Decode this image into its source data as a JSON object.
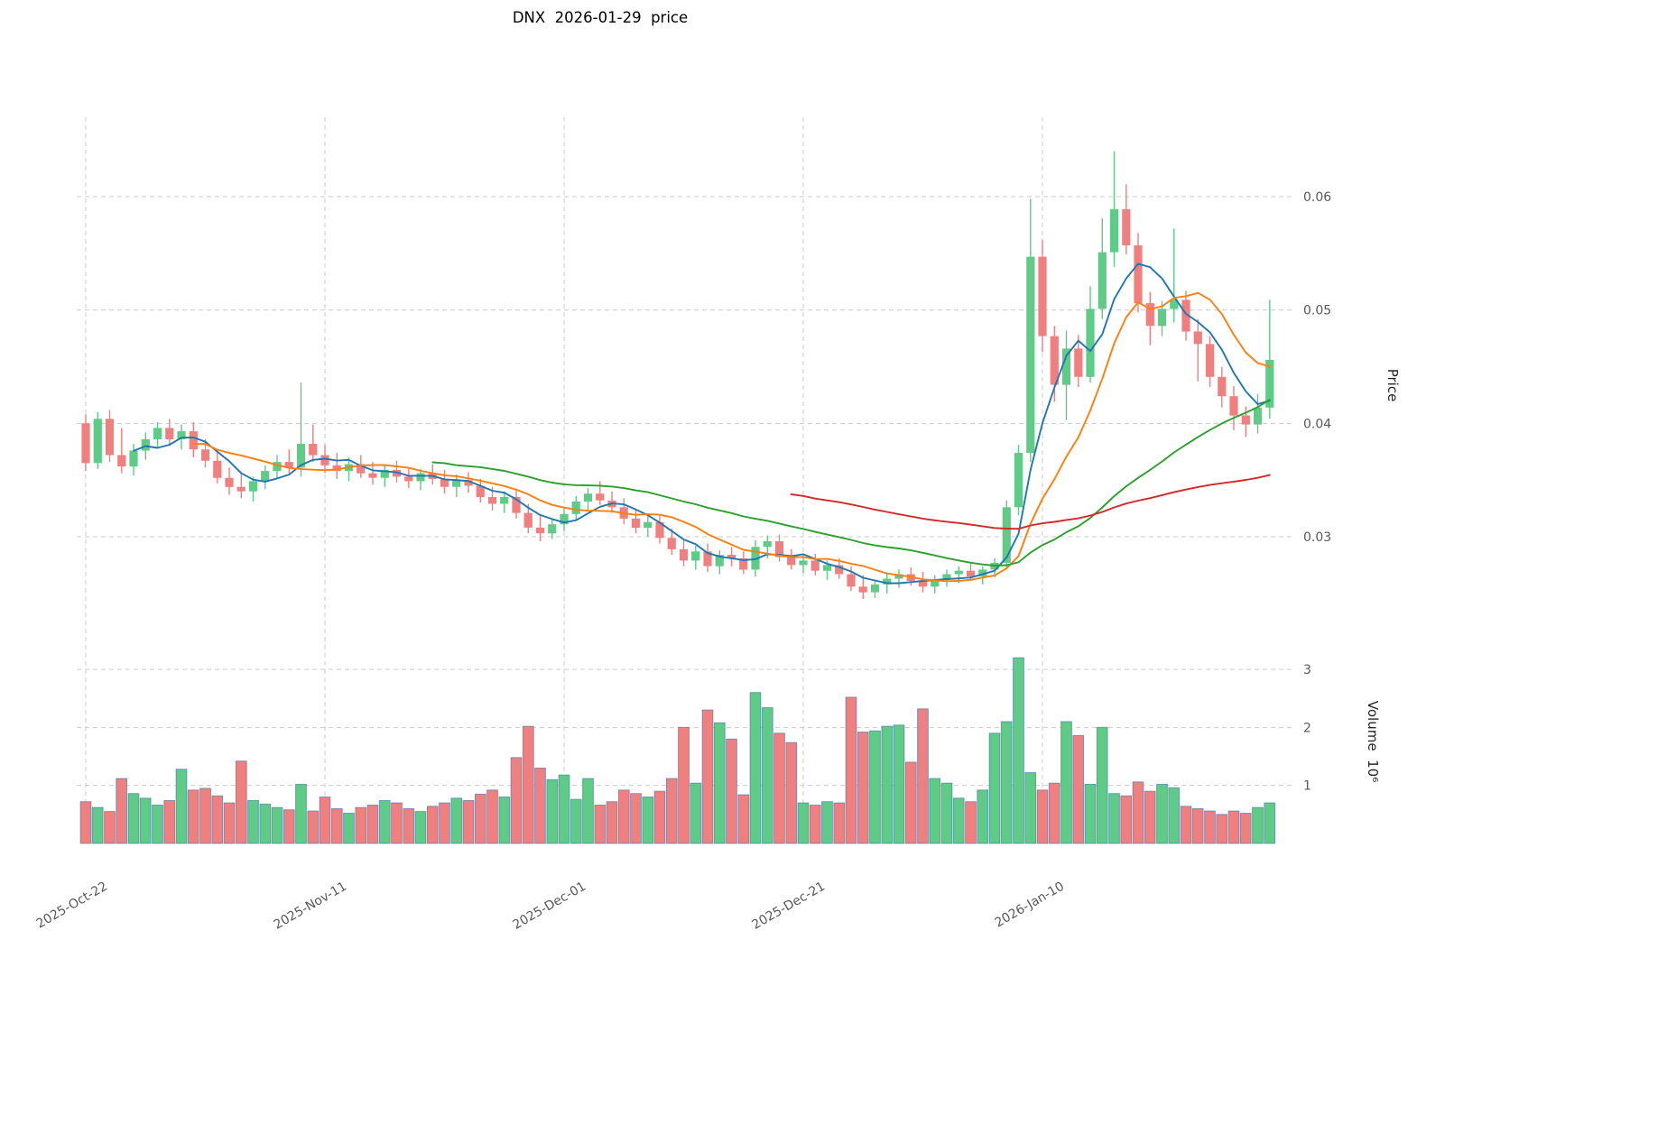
{
  "title": "DNX  2026-01-29  price",
  "axes": {
    "price_label": "Price",
    "volume_label": "Volume  10⁶",
    "price_ticks": [
      0.03,
      0.04,
      0.05,
      0.06
    ],
    "volume_ticks": [
      1,
      2,
      3
    ],
    "x_ticks": [
      {
        "i": 0,
        "label": "2025-Oct-22"
      },
      {
        "i": 20,
        "label": "2025-Nov-11"
      },
      {
        "i": 40,
        "label": "2025-Dec-01"
      },
      {
        "i": 60,
        "label": "2025-Dec-21"
      },
      {
        "i": 80,
        "label": "2026-Jan-10"
      }
    ]
  },
  "chart_data": {
    "type": "candlestick",
    "symbol": "DNX",
    "title": "DNX  2026-01-29  price",
    "ylabel": "Price",
    "ylabel_volume": "Volume 10⁶",
    "price_axis_range": [
      0.0224,
      0.067
    ],
    "volume_axis_range_millions": [
      0,
      3.65
    ],
    "grid": "dashed",
    "columns": [
      "date",
      "open",
      "high",
      "low",
      "close",
      "volume_millions"
    ],
    "moving_averages": [
      {
        "window": 5,
        "color": "#1f77b4"
      },
      {
        "window": 10,
        "color": "#ff7f0e"
      },
      {
        "window": 30,
        "color": "#2ca02c"
      },
      {
        "window": 60,
        "color": "#d62728"
      }
    ],
    "colors": {
      "up": "#5ecb87",
      "down": "#f0807f",
      "volume_edge": "#3c6fb0",
      "grid": "#cbcbcb",
      "tick_text": "#595959"
    },
    "rows": [
      [
        "2025-10-22",
        0.04,
        0.0408,
        0.0358,
        0.0365,
        0.72
      ],
      [
        "2025-10-23",
        0.0365,
        0.041,
        0.036,
        0.0404,
        0.62
      ],
      [
        "2025-10-24",
        0.0404,
        0.0412,
        0.0366,
        0.0372,
        0.55
      ],
      [
        "2025-10-25",
        0.0372,
        0.0396,
        0.0356,
        0.0362,
        1.12
      ],
      [
        "2025-10-26",
        0.0362,
        0.0382,
        0.0354,
        0.0376,
        0.86
      ],
      [
        "2025-10-27",
        0.0376,
        0.0392,
        0.0368,
        0.0386,
        0.78
      ],
      [
        "2025-10-28",
        0.0386,
        0.0401,
        0.0378,
        0.0396,
        0.66
      ],
      [
        "2025-10-29",
        0.0396,
        0.0404,
        0.038,
        0.0386,
        0.74
      ],
      [
        "2025-10-30",
        0.0386,
        0.0399,
        0.0377,
        0.0393,
        1.28
      ],
      [
        "2025-10-31",
        0.0393,
        0.0401,
        0.037,
        0.0377,
        0.92
      ],
      [
        "2025-11-01",
        0.0377,
        0.0386,
        0.0361,
        0.0367,
        0.95
      ],
      [
        "2025-11-02",
        0.0367,
        0.0375,
        0.0347,
        0.0352,
        0.82
      ],
      [
        "2025-11-03",
        0.0352,
        0.0361,
        0.0337,
        0.0344,
        0.7
      ],
      [
        "2025-11-04",
        0.0344,
        0.0356,
        0.0334,
        0.034,
        1.42
      ],
      [
        "2025-11-05",
        0.034,
        0.0353,
        0.0331,
        0.0349,
        0.74
      ],
      [
        "2025-11-06",
        0.0349,
        0.0363,
        0.0342,
        0.0358,
        0.68
      ],
      [
        "2025-11-07",
        0.0358,
        0.0372,
        0.0351,
        0.0366,
        0.62
      ],
      [
        "2025-11-08",
        0.0366,
        0.0377,
        0.0356,
        0.0361,
        0.58
      ],
      [
        "2025-11-09",
        0.0361,
        0.0436,
        0.0353,
        0.0382,
        1.02
      ],
      [
        "2025-11-10",
        0.0382,
        0.0399,
        0.0366,
        0.0372,
        0.56
      ],
      [
        "2025-11-11",
        0.0372,
        0.0381,
        0.0356,
        0.0363,
        0.8
      ],
      [
        "2025-11-12",
        0.0363,
        0.0374,
        0.0351,
        0.0358,
        0.6
      ],
      [
        "2025-11-13",
        0.0358,
        0.037,
        0.0349,
        0.0364,
        0.52
      ],
      [
        "2025-11-14",
        0.0364,
        0.0372,
        0.0352,
        0.0356,
        0.62
      ],
      [
        "2025-11-15",
        0.0356,
        0.0366,
        0.0346,
        0.0352,
        0.66
      ],
      [
        "2025-11-16",
        0.0352,
        0.0363,
        0.0344,
        0.0359,
        0.74
      ],
      [
        "2025-11-17",
        0.0359,
        0.0367,
        0.0348,
        0.0353,
        0.7
      ],
      [
        "2025-11-18",
        0.0353,
        0.0361,
        0.0343,
        0.0349,
        0.6
      ],
      [
        "2025-11-19",
        0.0349,
        0.036,
        0.0341,
        0.0356,
        0.55
      ],
      [
        "2025-11-20",
        0.0356,
        0.0364,
        0.0346,
        0.0351,
        0.64
      ],
      [
        "2025-11-21",
        0.0351,
        0.0359,
        0.0338,
        0.0344,
        0.7
      ],
      [
        "2025-11-22",
        0.0344,
        0.0355,
        0.0335,
        0.035,
        0.78
      ],
      [
        "2025-11-23",
        0.035,
        0.0357,
        0.0339,
        0.0345,
        0.74
      ],
      [
        "2025-11-24",
        0.0345,
        0.0351,
        0.033,
        0.0335,
        0.85
      ],
      [
        "2025-11-25",
        0.0335,
        0.0344,
        0.0323,
        0.0329,
        0.92
      ],
      [
        "2025-11-26",
        0.0329,
        0.034,
        0.0321,
        0.0335,
        0.8
      ],
      [
        "2025-11-27",
        0.0335,
        0.0341,
        0.0316,
        0.0321,
        1.48
      ],
      [
        "2025-11-28",
        0.0321,
        0.0329,
        0.0303,
        0.0308,
        2.02
      ],
      [
        "2025-11-29",
        0.0308,
        0.0319,
        0.0296,
        0.0303,
        1.3
      ],
      [
        "2025-11-30",
        0.0303,
        0.0316,
        0.0298,
        0.0311,
        1.1
      ],
      [
        "2025-12-01",
        0.0311,
        0.0325,
        0.0305,
        0.032,
        1.18
      ],
      [
        "2025-12-02",
        0.032,
        0.0336,
        0.0314,
        0.0331,
        0.76
      ],
      [
        "2025-12-03",
        0.0331,
        0.0343,
        0.0324,
        0.0338,
        1.12
      ],
      [
        "2025-12-04",
        0.0338,
        0.0349,
        0.0328,
        0.0332,
        0.66
      ],
      [
        "2025-12-05",
        0.0332,
        0.034,
        0.0321,
        0.0326,
        0.72
      ],
      [
        "2025-12-06",
        0.0326,
        0.0334,
        0.0311,
        0.0316,
        0.92
      ],
      [
        "2025-12-07",
        0.0316,
        0.0324,
        0.0303,
        0.0308,
        0.86
      ],
      [
        "2025-12-08",
        0.0308,
        0.0319,
        0.03,
        0.0313,
        0.8
      ],
      [
        "2025-12-09",
        0.0313,
        0.032,
        0.0294,
        0.0299,
        0.9
      ],
      [
        "2025-12-10",
        0.0299,
        0.0307,
        0.0284,
        0.0289,
        1.12
      ],
      [
        "2025-12-11",
        0.0289,
        0.0297,
        0.0274,
        0.0279,
        2.0
      ],
      [
        "2025-12-12",
        0.0279,
        0.0292,
        0.0271,
        0.0287,
        1.04
      ],
      [
        "2025-12-13",
        0.0287,
        0.0294,
        0.0269,
        0.0274,
        2.3
      ],
      [
        "2025-12-14",
        0.0274,
        0.0288,
        0.0267,
        0.0284,
        2.08
      ],
      [
        "2025-12-15",
        0.0284,
        0.0291,
        0.0274,
        0.0281,
        1.8
      ],
      [
        "2025-12-16",
        0.0281,
        0.0287,
        0.0267,
        0.0271,
        0.84
      ],
      [
        "2025-12-17",
        0.0271,
        0.0297,
        0.0265,
        0.0291,
        2.6
      ],
      [
        "2025-12-18",
        0.0291,
        0.0301,
        0.0281,
        0.0296,
        2.34
      ],
      [
        "2025-12-19",
        0.0296,
        0.0302,
        0.0278,
        0.0282,
        1.9
      ],
      [
        "2025-12-20",
        0.0282,
        0.0289,
        0.0271,
        0.0275,
        1.74
      ],
      [
        "2025-12-21",
        0.0275,
        0.0284,
        0.0268,
        0.0279,
        0.7
      ],
      [
        "2025-12-22",
        0.0279,
        0.0285,
        0.0266,
        0.027,
        0.66
      ],
      [
        "2025-12-23",
        0.027,
        0.0279,
        0.0262,
        0.0275,
        0.72
      ],
      [
        "2025-12-24",
        0.0275,
        0.0281,
        0.0263,
        0.0267,
        0.7
      ],
      [
        "2025-12-25",
        0.0267,
        0.0274,
        0.0252,
        0.0256,
        2.52
      ],
      [
        "2025-12-26",
        0.0256,
        0.0266,
        0.0245,
        0.0251,
        1.92
      ],
      [
        "2025-12-27",
        0.0251,
        0.0262,
        0.0246,
        0.0258,
        1.94
      ],
      [
        "2025-12-28",
        0.0258,
        0.0267,
        0.025,
        0.0263,
        2.02
      ],
      [
        "2025-12-29",
        0.0263,
        0.0271,
        0.0255,
        0.0267,
        2.04
      ],
      [
        "2025-12-30",
        0.0267,
        0.0273,
        0.0257,
        0.0261,
        1.4
      ],
      [
        "2025-12-31",
        0.0261,
        0.0269,
        0.0251,
        0.0256,
        2.32
      ],
      [
        "2026-01-01",
        0.0256,
        0.0266,
        0.025,
        0.0262,
        1.12
      ],
      [
        "2026-01-02",
        0.0262,
        0.0271,
        0.0256,
        0.0267,
        1.04
      ],
      [
        "2026-01-03",
        0.0267,
        0.0274,
        0.0259,
        0.027,
        0.78
      ],
      [
        "2026-01-04",
        0.027,
        0.0277,
        0.0261,
        0.0265,
        0.72
      ],
      [
        "2026-01-05",
        0.0265,
        0.0274,
        0.0258,
        0.0271,
        0.92
      ],
      [
        "2026-01-06",
        0.0271,
        0.0281,
        0.0264,
        0.0277,
        1.9
      ],
      [
        "2026-01-07",
        0.0277,
        0.0332,
        0.0271,
        0.0326,
        2.1
      ],
      [
        "2026-01-08",
        0.0326,
        0.0381,
        0.0319,
        0.0374,
        3.2
      ],
      [
        "2026-01-09",
        0.0374,
        0.0598,
        0.0366,
        0.0547,
        1.22
      ],
      [
        "2026-01-10",
        0.0547,
        0.0562,
        0.0463,
        0.0477,
        0.92
      ],
      [
        "2026-01-11",
        0.0477,
        0.0486,
        0.0419,
        0.0434,
        1.04
      ],
      [
        "2026-01-12",
        0.0434,
        0.0482,
        0.0403,
        0.0466,
        2.1
      ],
      [
        "2026-01-13",
        0.0466,
        0.0478,
        0.0432,
        0.0441,
        1.86
      ],
      [
        "2026-01-14",
        0.0441,
        0.0521,
        0.0436,
        0.0501,
        1.02
      ],
      [
        "2026-01-15",
        0.0501,
        0.0581,
        0.0492,
        0.0551,
        2.0
      ],
      [
        "2026-01-16",
        0.0551,
        0.064,
        0.0538,
        0.0589,
        0.86
      ],
      [
        "2026-01-17",
        0.0589,
        0.0611,
        0.0549,
        0.0557,
        0.82
      ],
      [
        "2026-01-18",
        0.0557,
        0.0568,
        0.0498,
        0.0506,
        1.06
      ],
      [
        "2026-01-19",
        0.0506,
        0.0516,
        0.0469,
        0.0486,
        0.9
      ],
      [
        "2026-01-20",
        0.0486,
        0.0508,
        0.0477,
        0.0501,
        1.02
      ],
      [
        "2026-01-21",
        0.0501,
        0.0572,
        0.0489,
        0.0509,
        0.96
      ],
      [
        "2026-01-22",
        0.0509,
        0.0517,
        0.0473,
        0.0481,
        0.64
      ],
      [
        "2026-01-23",
        0.0481,
        0.0492,
        0.0437,
        0.047,
        0.6
      ],
      [
        "2026-01-24",
        0.047,
        0.0477,
        0.0432,
        0.0441,
        0.56
      ],
      [
        "2026-01-25",
        0.0441,
        0.045,
        0.0414,
        0.0424,
        0.5
      ],
      [
        "2026-01-26",
        0.0424,
        0.0433,
        0.0394,
        0.0407,
        0.56
      ],
      [
        "2026-01-27",
        0.0407,
        0.0415,
        0.0388,
        0.0399,
        0.52
      ],
      [
        "2026-01-28",
        0.0399,
        0.0426,
        0.0391,
        0.0414,
        0.62
      ],
      [
        "2026-01-29",
        0.0414,
        0.0509,
        0.0404,
        0.0456,
        0.7
      ]
    ]
  }
}
